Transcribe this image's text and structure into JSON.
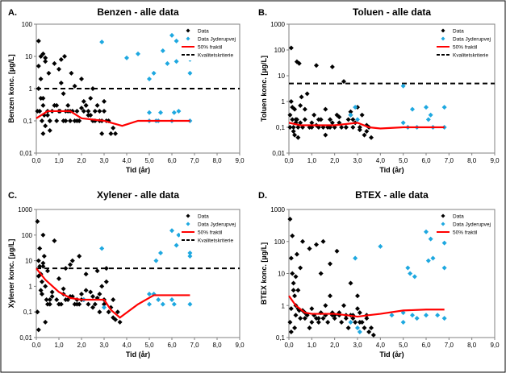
{
  "figure": {
    "border_color": "#000000",
    "background": "#ffffff"
  },
  "colors": {
    "data": "#000000",
    "jyderupvej": "#1ea8e0",
    "median": "#ff0000",
    "kriterie": "#000000"
  },
  "chart_data": [
    {
      "type": "scatter",
      "panel_label": "A.",
      "title": "Benzen - alle data",
      "xlabel": "Tid (år)",
      "ylabel": "Benzen konc. [µg/L]",
      "xlim": [
        0,
        9
      ],
      "xticks": [
        "0,0",
        "1,0",
        "2,0",
        "3,0",
        "4,0",
        "5,0",
        "6,0",
        "7,0",
        "8,0",
        "9,0"
      ],
      "ylim": [
        0.01,
        100
      ],
      "yticks": [
        "0,01",
        "0,1",
        "1",
        "10",
        "100"
      ],
      "ytick_values": [
        0.01,
        0.1,
        1,
        10,
        100
      ],
      "legend": {
        "placement": "top-right",
        "entries": [
          "Data",
          "Data Jyderupvej",
          "50% fraktil",
          "Kvalitetskriterie"
        ]
      },
      "kvalitetskriterie": 1,
      "median_line": {
        "x": [
          0.0,
          0.5,
          1.0,
          1.5,
          2.0,
          3.0,
          3.8,
          4.5,
          5.0,
          6.0,
          6.8
        ],
        "y": [
          0.12,
          0.2,
          0.2,
          0.2,
          0.12,
          0.1,
          0.07,
          0.1,
          0.1,
          0.1,
          0.1
        ]
      },
      "series": [
        {
          "name": "Data",
          "x": [
            0.05,
            0.1,
            0.15,
            0.2,
            0.25,
            0.3,
            0.35,
            0.4,
            0.5,
            0.55,
            0.6,
            0.7,
            0.8,
            0.9,
            1.0,
            1.05,
            1.1,
            1.2,
            1.25,
            1.3,
            1.4,
            1.5,
            1.55,
            1.6,
            1.7,
            1.8,
            1.9,
            2.0,
            2.1,
            2.2,
            2.3,
            2.4,
            2.5,
            2.6,
            2.7,
            2.8,
            2.9,
            3.0,
            3.1,
            3.3,
            3.5,
            0.1,
            0.3,
            0.5,
            0.8,
            1.0,
            1.2,
            1.4,
            1.6,
            1.8,
            2.0,
            2.2,
            2.4,
            2.6,
            2.8,
            3.0,
            0.2,
            0.4,
            0.6,
            1.1,
            1.5,
            2.1,
            2.5,
            2.9,
            3.2,
            0.1,
            0.3,
            0.2,
            0.6,
            0.9,
            1.3,
            1.7,
            2.3,
            3.4,
            0.4,
            0.3
          ],
          "y": [
            0.2,
            5,
            0.2,
            2,
            0.1,
            0.3,
            0.15,
            7,
            0.2,
            3,
            0.1,
            0.2,
            6,
            0.1,
            4,
            0.2,
            1.5,
            0.1,
            10,
            0.2,
            0.3,
            0.1,
            3,
            0.2,
            0.1,
            0.2,
            0.1,
            0.25,
            0.2,
            0.3,
            0.2,
            0.5,
            0.1,
            0.2,
            0.3,
            0.1,
            0.04,
            0.2,
            0.1,
            0.04,
            0.04,
            1,
            0.5,
            0.15,
            0.3,
            0.2,
            0.7,
            0.2,
            0.2,
            0.1,
            2,
            0.3,
            0.15,
            0.1,
            0.2,
            0.4,
            10,
            0.07,
            0.1,
            8,
            0.2,
            0.4,
            1,
            0.1,
            0.1,
            30,
            12,
            0.5,
            0.05,
            0.3,
            0.1,
            1.2,
            0.15,
            0.06,
            9,
            0.04
          ]
        },
        {
          "name": "Data Jyderupvej",
          "x": [
            2.9,
            4.0,
            4.5,
            5.0,
            5.0,
            5.2,
            5.4,
            5.5,
            5.6,
            5.8,
            6.0,
            6.0,
            6.1,
            6.2,
            6.3,
            6.8,
            6.8,
            6.8,
            5.0,
            5.3,
            6.2
          ],
          "y": [
            28,
            9,
            12,
            0.1,
            0.18,
            3,
            0.1,
            0.18,
            15,
            6,
            45,
            0.1,
            0.18,
            7,
            0.2,
            8,
            3,
            0.1,
            2,
            0.1,
            30
          ]
        }
      ]
    },
    {
      "type": "scatter",
      "panel_label": "B.",
      "title": "Toluen - alle data",
      "xlabel": "Tid (år)",
      "ylabel": "Toluen konc. [µg/L]",
      "xlim": [
        0,
        9
      ],
      "xticks": [
        "0,0",
        "1,0",
        "2,0",
        "3,0",
        "4,0",
        "5,0",
        "6,0",
        "7,0",
        "8,0",
        "9,0"
      ],
      "ylim": [
        0.01,
        1000
      ],
      "yticks": [
        "0,01",
        "0,1",
        "1",
        "10",
        "100",
        "1000"
      ],
      "ytick_values": [
        0.01,
        0.1,
        1,
        10,
        100,
        1000
      ],
      "legend": {
        "placement": "top-right",
        "entries": [
          "Data",
          "Data Jyderupvej",
          "50% fraktil",
          "Kvalitetskriterie"
        ]
      },
      "kvalitetskriterie": 5,
      "median_line": {
        "x": [
          0.0,
          0.5,
          1.0,
          2.0,
          3.0,
          3.5,
          4.0,
          5.0,
          6.0,
          6.8
        ],
        "y": [
          0.15,
          0.12,
          0.12,
          0.12,
          0.15,
          0.1,
          0.09,
          0.1,
          0.1,
          0.1
        ]
      },
      "series": [
        {
          "name": "Data",
          "x": [
            0.05,
            0.1,
            0.15,
            0.2,
            0.25,
            0.3,
            0.35,
            0.4,
            0.45,
            0.5,
            0.6,
            0.7,
            0.8,
            0.9,
            1.0,
            1.1,
            1.2,
            1.3,
            1.4,
            1.5,
            1.6,
            1.7,
            1.8,
            1.9,
            2.0,
            2.1,
            2.2,
            2.3,
            2.4,
            2.5,
            2.6,
            2.7,
            2.8,
            2.9,
            3.0,
            3.1,
            3.2,
            3.3,
            3.4,
            3.5,
            3.6,
            0.1,
            0.2,
            0.3,
            0.4,
            0.5,
            0.7,
            1.0,
            1.3,
            1.6,
            1.9,
            2.2,
            2.5,
            2.8,
            3.1,
            3.4,
            0.15,
            0.35,
            0.55,
            1.2,
            1.8,
            2.7,
            0.05,
            0.25
          ],
          "y": [
            0.3,
            120,
            0.2,
            0.1,
            0.5,
            0.15,
            35,
            0.1,
            30,
            0.7,
            0.1,
            0.2,
            2,
            0.1,
            0.15,
            0.3,
            25,
            0.1,
            0.2,
            0.1,
            0.5,
            0.1,
            0.2,
            22,
            0.1,
            0.3,
            0.15,
            0.1,
            6,
            0.1,
            0.2,
            0.4,
            0.1,
            0.15,
            0.6,
            0.1,
            0.3,
            0.05,
            0.07,
            0.1,
            0.04,
            1,
            0.07,
            0.2,
            0.04,
            0.15,
            0.5,
            0.1,
            0.2,
            0.05,
            0.15,
            0.25,
            0.1,
            0.2,
            0.08,
            0.12,
            0.6,
            0.2,
            1.5,
            0.12,
            0.1,
            0.3,
            0.1,
            0.05
          ]
        },
        {
          "name": "Data Jyderupvej",
          "x": [
            2.7,
            2.9,
            5.0,
            5.2,
            5.4,
            5.6,
            6.0,
            6.1,
            6.2,
            6.3,
            6.8,
            6.8,
            3.0,
            5.0
          ],
          "y": [
            0.3,
            0.6,
            4,
            0.1,
            0.5,
            0.1,
            0.6,
            0.2,
            0.3,
            0.1,
            0.6,
            0.1,
            0.2,
            0.15
          ]
        }
      ]
    },
    {
      "type": "scatter",
      "panel_label": "C.",
      "title": "Xylener - alle data",
      "xlabel": "Tid (år)",
      "ylabel": "Xylener konc. [µg/L]",
      "xlim": [
        0,
        9
      ],
      "xticks": [
        "0,0",
        "1,0",
        "2,0",
        "3,0",
        "4,0",
        "5,0",
        "6,0",
        "7,0",
        "8,0",
        "9,0"
      ],
      "ylim": [
        0.01,
        1000
      ],
      "yticks": [
        "0,01",
        "0,1",
        "1",
        "10",
        "100",
        "1000"
      ],
      "ytick_values": [
        0.01,
        0.1,
        1,
        10,
        100,
        1000
      ],
      "legend": {
        "placement": "top-right",
        "entries": [
          "Data",
          "Data Jyderupvej",
          "50% fraktil",
          "Kvalitetskriterie"
        ]
      },
      "kvalitetskriterie": 5,
      "median_line": {
        "x": [
          0.0,
          0.4,
          1.0,
          1.5,
          2.0,
          2.5,
          3.0,
          3.3,
          3.7,
          4.5,
          5.2,
          6.0,
          6.8
        ],
        "y": [
          5,
          1.8,
          0.6,
          0.35,
          0.3,
          0.3,
          0.3,
          0.12,
          0.06,
          0.2,
          0.45,
          0.45,
          0.45
        ]
      },
      "series": [
        {
          "name": "Data",
          "x": [
            0.05,
            0.1,
            0.15,
            0.2,
            0.25,
            0.3,
            0.35,
            0.4,
            0.45,
            0.5,
            0.6,
            0.7,
            0.8,
            0.9,
            1.0,
            1.1,
            1.2,
            1.3,
            1.4,
            1.5,
            1.6,
            1.7,
            1.8,
            1.9,
            2.0,
            2.1,
            2.2,
            2.3,
            2.4,
            2.5,
            2.6,
            2.7,
            2.8,
            2.9,
            3.0,
            3.1,
            3.2,
            3.3,
            3.4,
            3.5,
            3.6,
            3.7,
            0.1,
            0.2,
            0.3,
            0.5,
            0.7,
            1.0,
            1.3,
            1.6,
            1.9,
            2.2,
            2.5,
            2.8,
            3.1,
            3.4,
            0.1,
            0.3,
            0.6,
            1.2,
            1.8,
            2.7,
            0.05,
            0.25,
            0.4,
            0.15,
            1.5,
            2.0,
            3.0
          ],
          "y": [
            340,
            10,
            6,
            3,
            0.5,
            8,
            15,
            1,
            0.3,
            4,
            0.2,
            0.4,
            60,
            0.3,
            2,
            0.2,
            0.5,
            5,
            0.3,
            0.4,
            10,
            0.2,
            0.3,
            15,
            0.5,
            0.3,
            3,
            0.2,
            0.6,
            0.4,
            0.2,
            4,
            0.1,
            1,
            0.3,
            5,
            0.1,
            0.15,
            0.06,
            0.05,
            0.1,
            0.04,
            2.5,
            0.7,
            100,
            0.2,
            0.6,
            0.2,
            0.3,
            0.4,
            0.2,
            0.7,
            0.15,
            0.5,
            1.5,
            0.3,
            0.02,
            6,
            0.3,
            0.8,
            0.2,
            0.35,
            0.1,
            1.5,
            0.04,
            30,
            7,
            0.3,
            0.2
          ]
        },
        {
          "name": "Data Jyderupvej",
          "x": [
            2.1,
            2.9,
            3.0,
            5.0,
            5.2,
            5.4,
            5.5,
            5.6,
            6.0,
            6.0,
            6.1,
            6.2,
            6.3,
            6.8,
            6.8,
            6.8,
            5.0,
            5.3
          ],
          "y": [
            0.3,
            30,
            0.15,
            0.2,
            0.5,
            0.3,
            20,
            0.2,
            150,
            0.3,
            0.2,
            40,
            100,
            20,
            15,
            0.2,
            0.5,
            10
          ]
        }
      ]
    },
    {
      "type": "scatter",
      "panel_label": "D.",
      "title": "BTEX - alle data",
      "xlabel": "Tid (år)",
      "ylabel": "BTEX konc. [µg/L]",
      "xlim": [
        0,
        9
      ],
      "xticks": [
        "0,0",
        "1,0",
        "2,0",
        "3,0",
        "4,0",
        "5,0",
        "6,0",
        "7,0",
        "8,0",
        "9,0"
      ],
      "ylim": [
        0.1,
        1000
      ],
      "yticks": [
        "0,1",
        "1",
        "10",
        "100",
        "1000"
      ],
      "ytick_values": [
        0.1,
        1,
        10,
        100,
        1000
      ],
      "legend": {
        "placement": "top-right",
        "entries": [
          "Data",
          "Data Jyderupvej",
          "50% fraktil"
        ]
      },
      "median_line": {
        "x": [
          0.0,
          0.3,
          0.7,
          1.0,
          1.5,
          2.0,
          2.5,
          3.0,
          3.5,
          4.0,
          5.0,
          6.0,
          6.8
        ],
        "y": [
          2.0,
          1.0,
          0.6,
          0.55,
          0.55,
          0.55,
          0.5,
          0.45,
          0.5,
          0.55,
          0.7,
          0.75,
          0.75
        ]
      },
      "series": [
        {
          "name": "Data",
          "x": [
            0.05,
            0.1,
            0.15,
            0.2,
            0.25,
            0.3,
            0.35,
            0.4,
            0.45,
            0.5,
            0.6,
            0.7,
            0.8,
            0.9,
            1.0,
            1.1,
            1.2,
            1.3,
            1.4,
            1.5,
            1.6,
            1.7,
            1.8,
            1.9,
            2.0,
            2.1,
            2.2,
            2.3,
            2.4,
            2.5,
            2.6,
            2.7,
            2.8,
            2.9,
            3.0,
            3.1,
            3.2,
            3.3,
            3.4,
            3.5,
            3.6,
            3.7,
            0.1,
            0.2,
            0.3,
            0.5,
            0.7,
            1.0,
            1.3,
            1.6,
            1.9,
            2.2,
            2.5,
            2.8,
            3.1,
            3.4,
            0.1,
            0.3,
            0.6,
            1.2,
            1.8,
            2.7,
            0.05,
            0.25,
            0.4,
            0.15,
            1.5,
            2.0,
            3.0,
            0.9,
            1.4
          ],
          "y": [
            500,
            30,
            10,
            5,
            2,
            1,
            40,
            3,
            0.7,
            0.4,
            100,
            0.6,
            0.5,
            60,
            0.3,
            0.5,
            80,
            0.4,
            0.6,
            100,
            0.5,
            0.3,
            2,
            0.6,
            0.4,
            50,
            0.5,
            0.3,
            1,
            0.5,
            0.2,
            5,
            0.4,
            0.3,
            2,
            0.6,
            0.3,
            0.2,
            0.5,
            0.15,
            0.2,
            0.12,
            0.8,
            3,
            0.5,
            15,
            0.4,
            0.8,
            0.3,
            1,
            0.5,
            0.6,
            0.4,
            0.5,
            0.3,
            0.4,
            0.15,
            8,
            0.7,
            0.4,
            20,
            0.5,
            0.3,
            0.2,
            0.8,
            150,
            0.4,
            0.5,
            0.8,
            0.2,
            10
          ]
        },
        {
          "name": "Data Jyderupvej",
          "x": [
            2.9,
            3.0,
            3.1,
            4.0,
            4.5,
            5.0,
            5.2,
            5.4,
            5.5,
            5.6,
            6.0,
            6.0,
            6.1,
            6.2,
            6.3,
            6.8,
            6.8,
            6.8,
            5.0,
            5.3,
            6.5,
            2.7
          ],
          "y": [
            30,
            0.2,
            0.15,
            70,
            0.5,
            0.3,
            15,
            0.5,
            8,
            0.4,
            200,
            0.5,
            25,
            120,
            30,
            90,
            15,
            0.4,
            0.6,
            10,
            0.5,
            0.3
          ]
        }
      ]
    }
  ]
}
